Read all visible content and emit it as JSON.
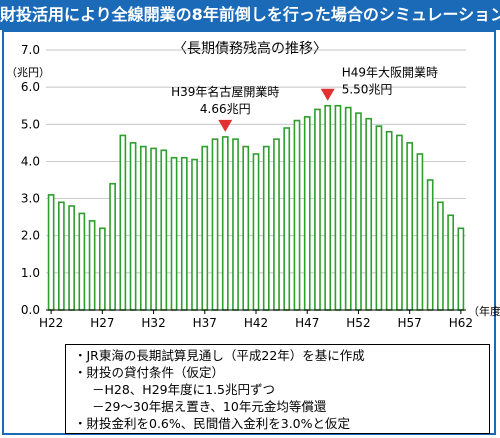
{
  "title": "財投活用により全線開業の8年前倒しを行った場合のシミュレーション",
  "chart_data": {
    "type": "bar",
    "title": "〈長期債務残高の推移〉",
    "ylabel": "（兆円）",
    "xlabel": "（年度）",
    "ylim": [
      0,
      7
    ],
    "yticks": [
      "0.0",
      "1.0",
      "2.0",
      "3.0",
      "4.0",
      "5.0",
      "6.0",
      "7.0"
    ],
    "xtick_labels": [
      "H22",
      "H27",
      "H32",
      "H37",
      "H42",
      "H47",
      "H52",
      "H57",
      "H62"
    ],
    "categories": [
      "H22",
      "H23",
      "H24",
      "H25",
      "H26",
      "H27",
      "H28",
      "H29",
      "H30",
      "H31",
      "H32",
      "H33",
      "H34",
      "H35",
      "H36",
      "H37",
      "H38",
      "H39",
      "H40",
      "H41",
      "H42",
      "H43",
      "H44",
      "H45",
      "H46",
      "H47",
      "H48",
      "H49",
      "H50",
      "H51",
      "H52",
      "H53",
      "H54",
      "H55",
      "H56",
      "H57",
      "H58",
      "H59",
      "H60",
      "H61",
      "H62"
    ],
    "values": [
      3.1,
      2.9,
      2.8,
      2.6,
      2.4,
      2.2,
      3.4,
      4.7,
      4.5,
      4.4,
      4.35,
      4.3,
      4.1,
      4.1,
      4.05,
      4.4,
      4.6,
      4.66,
      4.6,
      4.4,
      4.2,
      4.4,
      4.6,
      4.9,
      5.1,
      5.2,
      5.4,
      5.5,
      5.5,
      5.45,
      5.3,
      5.15,
      4.95,
      4.8,
      4.7,
      4.5,
      4.2,
      3.5,
      2.9,
      2.55,
      2.2
    ],
    "grid": true,
    "bar_fill": "#ffffff",
    "bar_stroke": "#2e9e2e",
    "annotations": [
      {
        "line1": "H39年名古屋開業時",
        "line2": "4.66兆円",
        "category": "H39",
        "value": 4.66
      },
      {
        "line1": "H49年大阪開業時",
        "line2": "5.50兆円",
        "category": "H49",
        "value": 5.5
      }
    ],
    "marker_color": "#e03030"
  },
  "notes": [
    "・JR東海の長期試算見通し（平成22年）を基に作成",
    "・財投の貸付条件（仮定）",
    "－H28、H29年度に1.5兆円ずつ",
    "－29～30年据え置き、10年元金均等償還",
    "・財投金利を0.6%、民間借入金利を3.0%と仮定"
  ]
}
